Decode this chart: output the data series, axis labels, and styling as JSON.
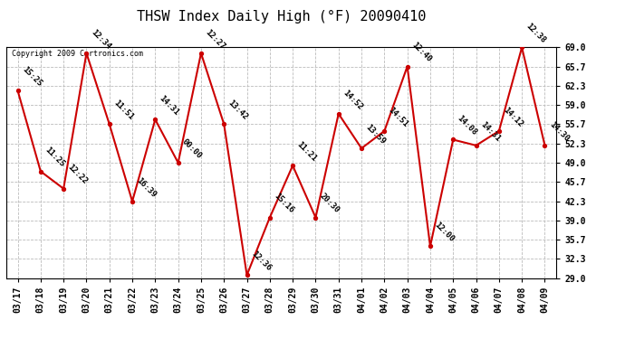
{
  "title": "THSW Index Daily High (°F) 20090410",
  "copyright": "Copyright 2009 Cartronics.com",
  "background_color": "#ffffff",
  "plot_bg_color": "#ffffff",
  "grid_color": "#bbbbbb",
  "line_color": "#cc0000",
  "point_color": "#cc0000",
  "dates": [
    "03/17",
    "03/18",
    "03/19",
    "03/20",
    "03/21",
    "03/22",
    "03/23",
    "03/24",
    "03/25",
    "03/26",
    "03/27",
    "03/28",
    "03/29",
    "03/30",
    "03/31",
    "04/01",
    "04/02",
    "04/03",
    "04/04",
    "04/05",
    "04/06",
    "04/07",
    "04/08",
    "04/09"
  ],
  "values": [
    61.5,
    47.5,
    44.5,
    68.0,
    55.7,
    42.3,
    56.5,
    49.0,
    68.0,
    55.7,
    29.5,
    39.5,
    48.5,
    39.5,
    57.5,
    51.5,
    54.5,
    65.7,
    34.5,
    53.0,
    52.0,
    54.5,
    69.0,
    52.0
  ],
  "labels": [
    "15:25",
    "11:25",
    "12:22",
    "12:34",
    "11:51",
    "16:39",
    "14:31",
    "00:00",
    "12:27",
    "13:42",
    "12:36",
    "15:16",
    "11:21",
    "20:30",
    "14:52",
    "13:59",
    "14:51",
    "12:40",
    "12:00",
    "14:08",
    "14:31",
    "14:12",
    "12:38",
    "14:30"
  ],
  "ylim": [
    29.0,
    69.0
  ],
  "yticks": [
    29.0,
    32.3,
    35.7,
    39.0,
    42.3,
    45.7,
    49.0,
    52.3,
    55.7,
    59.0,
    62.3,
    65.7,
    69.0
  ],
  "title_fontsize": 11,
  "label_fontsize": 6.5,
  "tick_fontsize": 7,
  "copyright_fontsize": 6
}
